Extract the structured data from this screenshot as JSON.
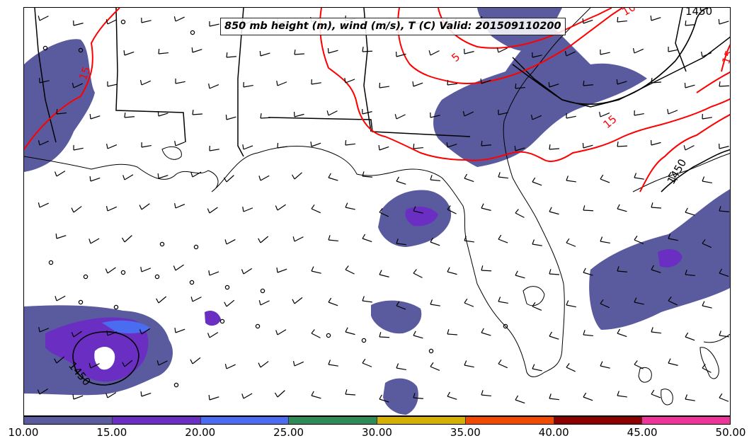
{
  "title": "850 mb height (m), wind (m/s), T (C) Valid: 201509110200",
  "colorbar": {
    "colors": [
      "#5a5a9e",
      "#6a2fc2",
      "#4a6cf0",
      "#2e8b57",
      "#d4b000",
      "#f04a00",
      "#8b0000",
      "#ee3399"
    ],
    "ticks": [
      "10.00",
      "15.00",
      "20.00",
      "25.00",
      "30.00",
      "35.00",
      "40.00",
      "45.00",
      "50.00"
    ]
  },
  "contours": {
    "height_color": "#000000",
    "temperature_color": "#ff0000",
    "height_labels": [
      "1450",
      "1450",
      "1450"
    ],
    "temperature_labels": [
      "15",
      "15",
      "5",
      "10",
      "15"
    ]
  },
  "shading_color": "#5a5a9e"
}
